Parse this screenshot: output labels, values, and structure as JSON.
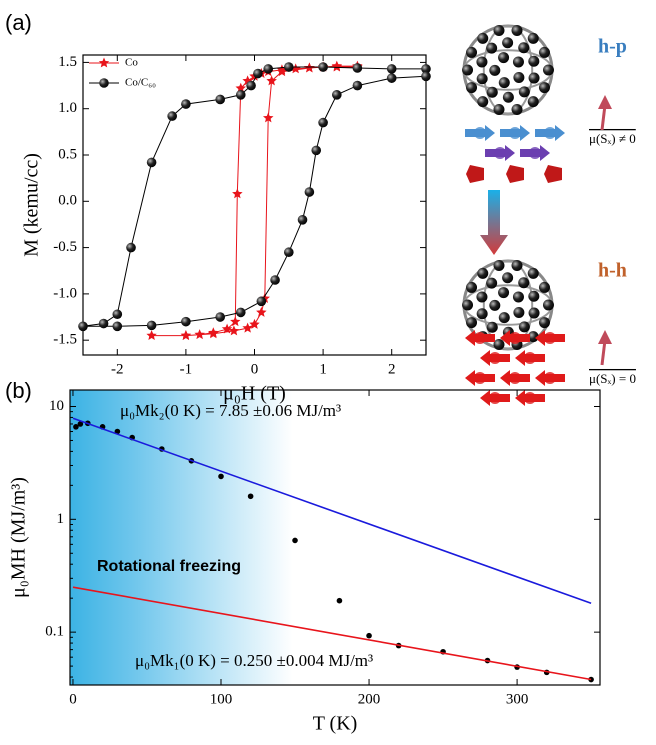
{
  "panels": [
    "(a)",
    "(b)"
  ],
  "diagram": {
    "labels": [
      "h-p",
      "h-h"
    ],
    "moments": [
      "μ(Sₓ) ≠ 0",
      "μ(Sₓ) = 0"
    ]
  },
  "chart_data": [
    {
      "type": "line",
      "xlabel": "μ₀H (T)",
      "ylabel": "M (kemu/cc)",
      "xlim": [
        -2.5,
        2.5
      ],
      "ylim": [
        -1.66,
        1.58
      ],
      "xticks": [
        -2,
        -1,
        0,
        1,
        2
      ],
      "yticks": [
        -1.5,
        {
          "value": -1,
          "label": "-1.0"
        },
        -0.5,
        {
          "value": 0,
          "label": "0.0"
        },
        0.5,
        {
          "value": 1,
          "label": "1.0"
        },
        1.5
      ],
      "legend": "upper left",
      "series": [
        {
          "name": "Co",
          "color": "#e8141b",
          "marker": "star",
          "mode": "line+markers",
          "x": [
            1.5,
            1.2,
            1.0,
            0.8,
            0.6,
            0.4,
            0.2,
            0.1,
            0.0,
            -0.1,
            -0.2,
            -0.25,
            -0.28,
            -0.4,
            -0.6,
            -0.8,
            -1.0,
            -1.5,
            -1.0,
            -0.6,
            -0.3,
            -0.1,
            0.0,
            0.1,
            0.15,
            0.2,
            0.25,
            0.4,
            0.8,
            1.2,
            1.5
          ],
          "values": [
            1.45,
            1.45,
            1.45,
            1.44,
            1.43,
            1.42,
            1.4,
            1.38,
            1.35,
            1.3,
            1.22,
            0.08,
            -1.3,
            -1.38,
            -1.42,
            -1.44,
            -1.45,
            -1.45,
            -1.45,
            -1.43,
            -1.4,
            -1.37,
            -1.33,
            -1.2,
            -1.05,
            0.9,
            1.3,
            1.4,
            1.44,
            1.46,
            1.46
          ]
        },
        {
          "name": "Co/C₆₀",
          "color": "#000000",
          "marker": "circle",
          "mode": "line+markers",
          "x": [
            2.5,
            2.0,
            1.5,
            1.0,
            0.5,
            0.2,
            0.05,
            -0.05,
            -0.2,
            -0.5,
            -1.0,
            -1.2,
            -1.5,
            -1.8,
            -2.0,
            -2.2,
            -2.5,
            -2.0,
            -1.5,
            -1.0,
            -0.5,
            -0.2,
            0.1,
            0.3,
            0.5,
            0.7,
            0.8,
            0.9,
            1.0,
            1.2,
            1.5,
            2.0,
            2.5
          ],
          "values": [
            1.43,
            1.43,
            1.44,
            1.45,
            1.45,
            1.43,
            1.38,
            1.25,
            1.15,
            1.1,
            1.05,
            0.92,
            0.42,
            -0.5,
            -1.22,
            -1.32,
            -1.35,
            -1.35,
            -1.34,
            -1.3,
            -1.25,
            -1.2,
            -1.08,
            -0.85,
            -0.55,
            -0.2,
            0.1,
            0.55,
            0.85,
            1.15,
            1.25,
            1.33,
            1.35
          ]
        }
      ]
    },
    {
      "type": "scatter",
      "xlabel": "T (K)",
      "ylabel": "μ₀MH (MJ/m³)",
      "xlim": [
        -2,
        356
      ],
      "ylim": [
        0.034,
        14
      ],
      "yscale": "log",
      "xticks": [
        0,
        100,
        200,
        300
      ],
      "yticks": [
        0.1,
        1,
        10
      ],
      "annotations": [
        "μ₀Mk₂(0 K) = 7.85 ±0.06 MJ/m³",
        "Rotational freezing",
        "μ₀Mk₁(0 K) = 0.250 ±0.004 MJ/m³"
      ],
      "series": [
        {
          "color": "#000000",
          "marker": "circle",
          "mode": "markers",
          "x": [
            2,
            5,
            10,
            20,
            30,
            40,
            60,
            80,
            100,
            120,
            150,
            180,
            200,
            220,
            250,
            280,
            300,
            320,
            350
          ],
          "values": [
            6.6,
            7.0,
            7.1,
            6.6,
            6.0,
            5.3,
            4.2,
            3.3,
            2.4,
            1.6,
            0.65,
            0.19,
            0.093,
            0.076,
            0.067,
            0.056,
            0.049,
            0.044,
            0.038
          ]
        },
        {
          "color": "#1a1adc",
          "mode": "line",
          "x": [
            0,
            350
          ],
          "values": [
            7.85,
            0.18
          ]
        },
        {
          "color": "#e8141b",
          "mode": "line",
          "x": [
            0,
            350
          ],
          "values": [
            0.25,
            0.038
          ]
        }
      ]
    }
  ]
}
